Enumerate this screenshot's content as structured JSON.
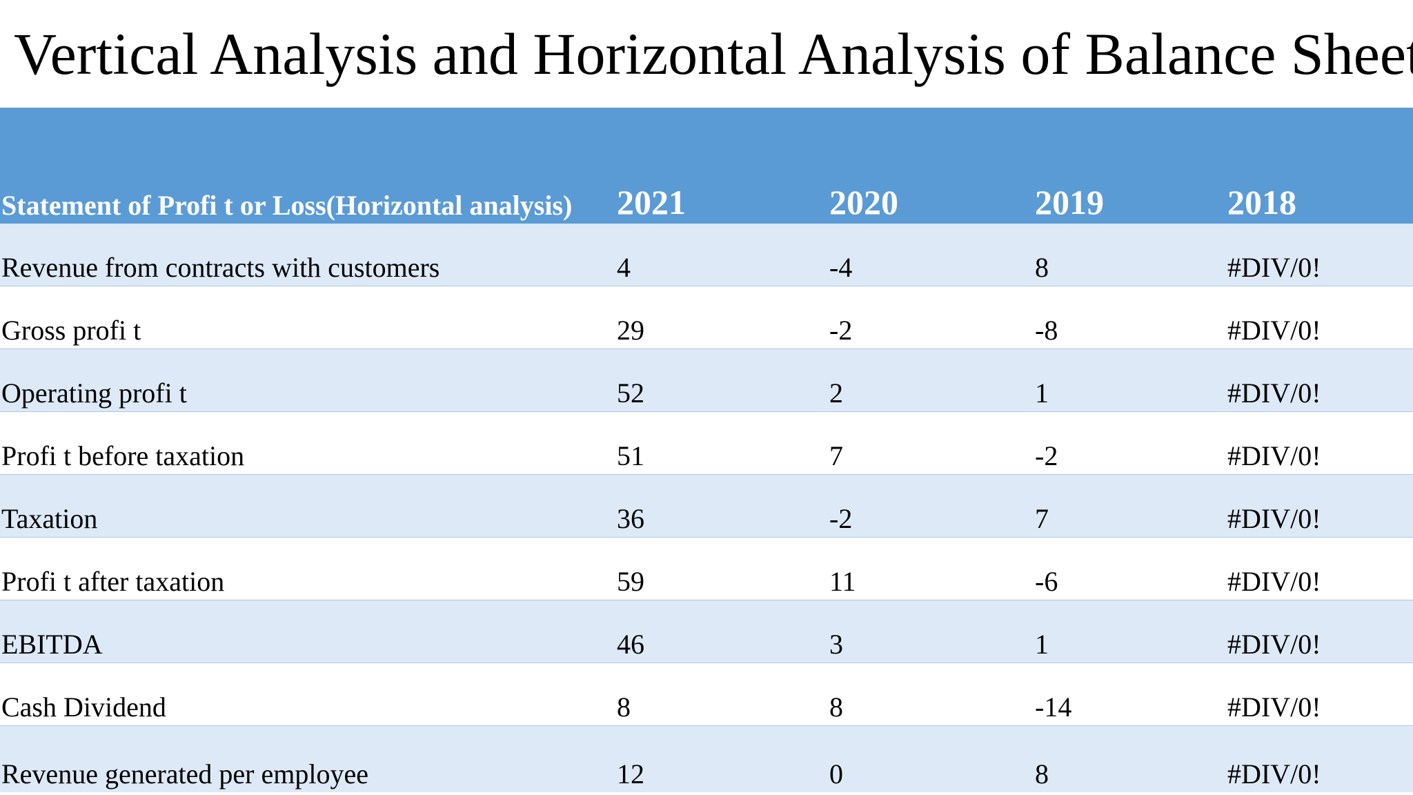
{
  "title": "Vertical Analysis and Horizontal Analysis of Balance Sheet:",
  "table": {
    "header": {
      "label": "Statement of Profi t or Loss(Horizontal analysis)",
      "years": [
        "2021",
        "2020",
        "2019",
        "2018"
      ]
    },
    "rows": [
      {
        "label": "Revenue from contracts with customers",
        "values": [
          "4",
          "-4",
          "8",
          "#DIV/0!"
        ]
      },
      {
        "label": "Gross profi t",
        "values": [
          "29",
          "-2",
          "-8",
          "#DIV/0!"
        ]
      },
      {
        "label": "Operating profi t",
        "values": [
          "52",
          "2",
          "1",
          "#DIV/0!"
        ]
      },
      {
        "label": "Profi t before taxation",
        "values": [
          "51",
          "7",
          "-2",
          "#DIV/0!"
        ]
      },
      {
        "label": "Taxation",
        "values": [
          "36",
          "-2",
          "7",
          "#DIV/0!"
        ]
      },
      {
        "label": "Profi t after taxation",
        "values": [
          "59",
          "11",
          "-6",
          "#DIV/0!"
        ]
      },
      {
        "label": "EBITDA",
        "values": [
          "46",
          "3",
          "1",
          "#DIV/0!"
        ]
      },
      {
        "label": "Cash Dividend",
        "values": [
          "8",
          "8",
          "-14",
          "#DIV/0!"
        ]
      },
      {
        "label": "Revenue generated per employee",
        "values": [
          "12",
          "0",
          "8",
          "#DIV/0!"
        ]
      }
    ]
  },
  "colors": {
    "header_bg": "#5b9bd5",
    "band_odd": "#dde9f6",
    "band_even": "#ffffff",
    "header_text": "#ffffff",
    "body_text": "#000000"
  }
}
